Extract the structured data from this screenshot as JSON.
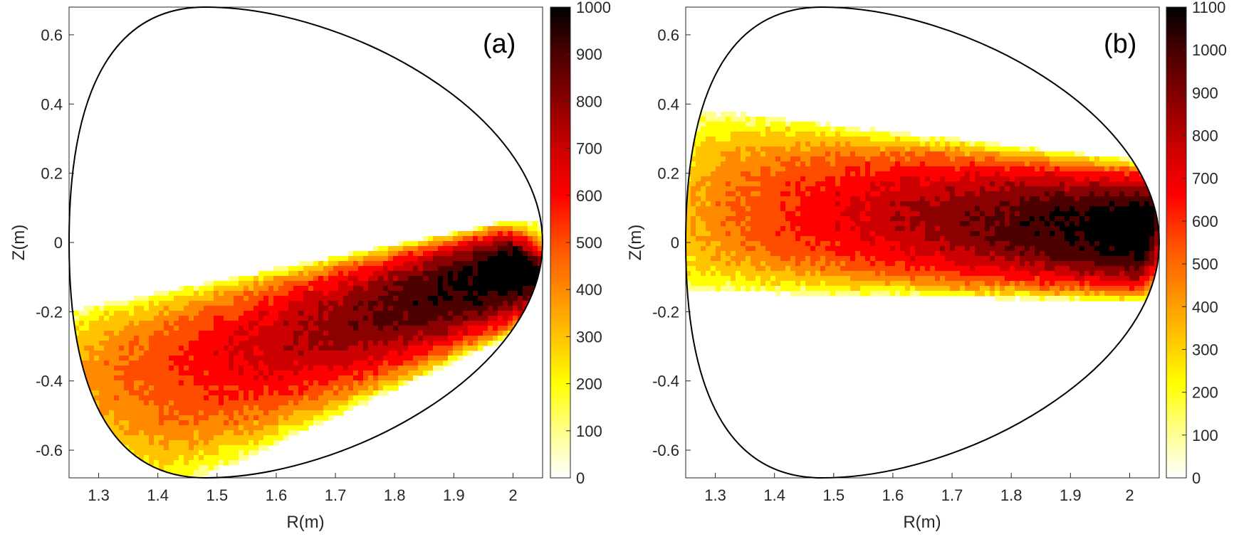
{
  "chart_data": [
    {
      "type": "heatmap",
      "panel_label": "(a)",
      "xlabel": "R(m)",
      "ylabel": "Z(m)",
      "xlim": [
        1.25,
        2.05
      ],
      "ylim": [
        -0.68,
        0.68
      ],
      "x_ticks": [
        1.3,
        1.4,
        1.5,
        1.6,
        1.7,
        1.8,
        1.9,
        2.0
      ],
      "x_tick_labels": [
        "1.3",
        "1.4",
        "1.5",
        "1.6",
        "1.7",
        "1.8",
        "1.9",
        "2"
      ],
      "y_ticks": [
        0.6,
        0.4,
        0.2,
        0,
        -0.2,
        -0.4,
        -0.6
      ],
      "y_tick_labels": [
        "0.6",
        "0.4",
        "0.2",
        "0",
        "-0.2",
        "-0.4",
        "-0.6"
      ],
      "colorbar": {
        "min": 0,
        "max": 1000,
        "ticks": [
          0,
          100,
          200,
          300,
          400,
          500,
          600,
          700,
          800,
          900,
          1000
        ],
        "tick_labels": [
          "0",
          "100",
          "200",
          "300",
          "400",
          "500",
          "600",
          "700",
          "800",
          "900",
          "1000"
        ]
      },
      "boundary": {
        "r_inner": 1.25,
        "r_outer": 2.05,
        "r_top": 1.48,
        "z_half_height": 0.68
      },
      "distribution": {
        "description": "Tilted band along a line from (1.30,-0.47) to (2.03,-0.07); peak at outer end",
        "start": [
          1.3,
          -0.47
        ],
        "end": [
          2.03,
          -0.07
        ],
        "half_width_start": 0.18,
        "half_width_end": 0.09,
        "peak_value": 1000
      }
    },
    {
      "type": "heatmap",
      "panel_label": "(b)",
      "xlabel": "R(m)",
      "ylabel": "Z(m)",
      "xlim": [
        1.25,
        2.05
      ],
      "ylim": [
        -0.68,
        0.68
      ],
      "x_ticks": [
        1.3,
        1.4,
        1.5,
        1.6,
        1.7,
        1.8,
        1.9,
        2.0
      ],
      "x_tick_labels": [
        "1.3",
        "1.4",
        "1.5",
        "1.6",
        "1.7",
        "1.8",
        "1.9",
        "2"
      ],
      "y_ticks": [
        0.6,
        0.4,
        0.2,
        0,
        -0.2,
        -0.4,
        -0.6
      ],
      "y_tick_labels": [
        "0.6",
        "0.4",
        "0.2",
        "0",
        "-0.2",
        "-0.4",
        "-0.6"
      ],
      "colorbar": {
        "min": 0,
        "max": 1100,
        "ticks": [
          0,
          100,
          200,
          300,
          400,
          500,
          600,
          700,
          800,
          900,
          1000,
          1100
        ],
        "tick_labels": [
          "0",
          "100",
          "200",
          "300",
          "400",
          "500",
          "600",
          "700",
          "800",
          "900",
          "1000",
          "1100"
        ]
      },
      "boundary": {
        "r_inner": 1.25,
        "r_outer": 2.05,
        "r_top": 1.48,
        "z_half_height": 0.68
      },
      "distribution": {
        "description": "Near-horizontal band from (1.27,0.12) to (2.03,0.03), intensity rising with R",
        "start": [
          1.27,
          0.12
        ],
        "end": [
          2.03,
          0.03
        ],
        "half_width_start": 0.17,
        "half_width_end": 0.13,
        "peak_value": 1100
      }
    }
  ],
  "colormap": {
    "name": "hot-reversed",
    "stops": [
      "#ffffff",
      "#ffff8a",
      "#ffff00",
      "#ffc300",
      "#ff8a00",
      "#ff4d00",
      "#ff0000",
      "#cc0000",
      "#8b0000",
      "#4d0000",
      "#000000"
    ]
  }
}
